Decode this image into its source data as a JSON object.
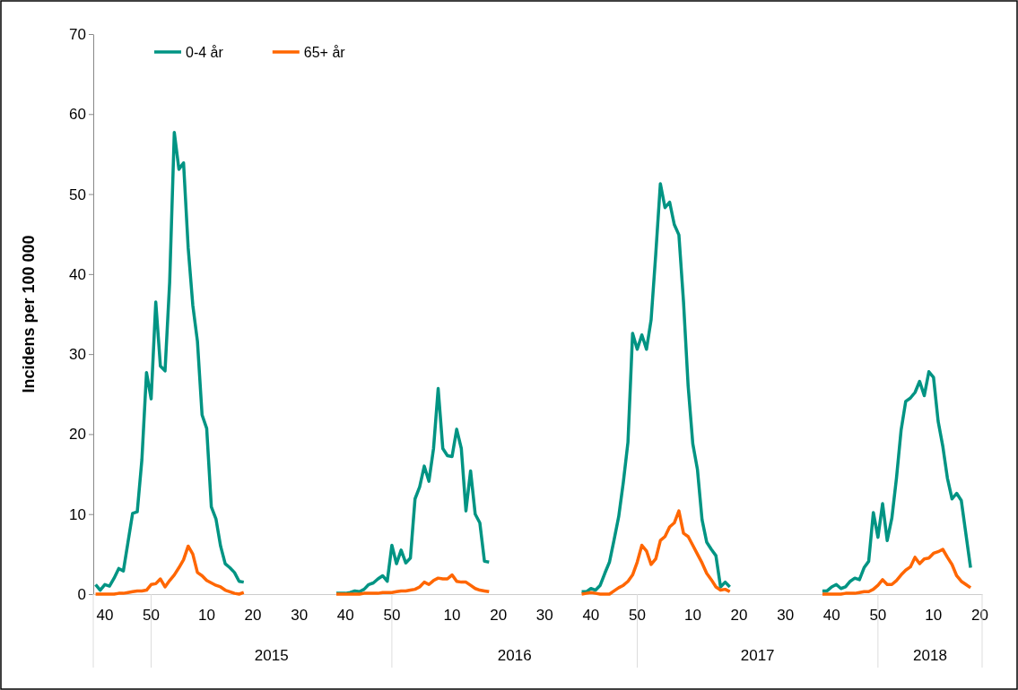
{
  "chart_data": {
    "type": "line",
    "ylabel": "Incidens per 100 000",
    "categories": [
      null,
      null,
      "40",
      null,
      null,
      null,
      null,
      null,
      null,
      null,
      null,
      null,
      "50",
      null,
      null,
      null,
      null,
      null,
      null,
      null,
      null,
      null,
      null,
      null,
      "10",
      null,
      null,
      null,
      null,
      null,
      null,
      null,
      null,
      null,
      "20",
      null,
      null,
      null,
      null,
      null,
      null,
      null,
      null,
      null,
      "30",
      null,
      null,
      null,
      null,
      null,
      null,
      null,
      null,
      null,
      "40",
      null,
      null,
      null,
      null,
      null,
      null,
      null,
      null,
      null,
      "50",
      null,
      null,
      null,
      null,
      null,
      null,
      null,
      null,
      null,
      null,
      null,
      null,
      "10",
      null,
      null,
      null,
      null,
      null,
      null,
      null,
      null,
      null,
      "20",
      null,
      null,
      null,
      null,
      null,
      null,
      null,
      null,
      null,
      "30",
      null,
      null,
      null,
      null,
      null,
      null,
      null,
      null,
      null,
      "40",
      null,
      null,
      null,
      null,
      null,
      null,
      null,
      null,
      null,
      "50",
      null,
      null,
      null,
      null,
      null,
      null,
      null,
      null,
      null,
      null,
      null,
      "10",
      null,
      null,
      null,
      null,
      null,
      null,
      null,
      null,
      null,
      "20",
      null,
      null,
      null,
      null,
      null,
      null,
      null,
      null,
      null,
      "30",
      null,
      null,
      null,
      null,
      null,
      null,
      null,
      null,
      null,
      "40",
      null,
      null,
      null,
      null,
      null,
      null,
      null,
      null,
      null,
      "50",
      null,
      null,
      null,
      null,
      null,
      null,
      null,
      null,
      null,
      null,
      null,
      "10",
      null,
      null,
      null,
      null,
      null,
      null,
      null,
      null,
      null,
      "20"
    ],
    "series": [
      {
        "name": "0-4 år",
        "color": "#009483",
        "values": [
          1.2,
          0.5,
          1.2,
          1.0,
          2.0,
          3.2,
          2.9,
          6.5,
          10.1,
          10.3,
          16.8,
          27.7,
          24.4,
          36.5,
          28.5,
          27.9,
          39.0,
          57.7,
          53.1,
          53.9,
          43.3,
          36.1,
          31.6,
          22.4,
          20.7,
          10.9,
          9.4,
          6.0,
          3.8,
          3.3,
          2.7,
          1.6,
          1.5,
          null,
          null,
          null,
          null,
          null,
          null,
          null,
          null,
          null,
          null,
          null,
          null,
          null,
          null,
          null,
          null,
          null,
          null,
          null,
          0.1,
          0.1,
          0.1,
          0.2,
          0.4,
          0.3,
          0.6,
          1.2,
          1.4,
          1.9,
          2.3,
          1.6,
          6.1,
          3.8,
          5.5,
          3.9,
          4.5,
          11.9,
          13.4,
          16.0,
          14.1,
          18.2,
          25.7,
          18.2,
          17.3,
          17.2,
          20.6,
          18.2,
          10.4,
          15.4,
          10.0,
          8.9,
          4.1,
          4.0,
          null,
          null,
          null,
          null,
          null,
          null,
          null,
          null,
          null,
          null,
          null,
          null,
          null,
          null,
          null,
          null,
          null,
          null,
          null,
          0.3,
          0.3,
          0.7,
          0.5,
          1.1,
          2.6,
          4.0,
          6.8,
          9.7,
          14.0,
          19.0,
          32.6,
          30.6,
          32.4,
          30.6,
          34.3,
          42.5,
          51.3,
          48.3,
          49.0,
          46.2,
          44.9,
          36.5,
          26.0,
          18.8,
          15.6,
          9.3,
          6.5,
          5.6,
          4.8,
          0.9,
          1.5,
          0.9,
          null,
          null,
          null,
          null,
          null,
          null,
          null,
          null,
          null,
          null,
          null,
          null,
          null,
          null,
          null,
          null,
          null,
          null,
          null,
          0.4,
          0.4,
          0.9,
          1.2,
          0.7,
          0.9,
          1.6,
          2.0,
          1.8,
          3.3,
          4.1,
          10.2,
          7.1,
          11.3,
          6.7,
          9.5,
          14.5,
          20.5,
          24.1,
          24.5,
          25.2,
          26.6,
          24.8,
          27.8,
          27.1,
          21.6,
          18.5,
          14.5,
          11.9,
          12.6,
          11.7,
          7.5,
          3.3,
          null,
          null
        ]
      },
      {
        "name": "65+ år",
        "color": "#ff6600",
        "values": [
          0,
          0,
          0,
          0,
          0,
          0.1,
          0.1,
          0.2,
          0.3,
          0.4,
          0.4,
          0.5,
          1.2,
          1.3,
          1.9,
          0.9,
          1.7,
          2.4,
          3.3,
          4.3,
          6.0,
          5.0,
          2.7,
          2.3,
          1.7,
          1.4,
          1.1,
          0.9,
          0.5,
          0.3,
          0.1,
          0.0,
          0.2,
          null,
          null,
          null,
          null,
          null,
          null,
          null,
          null,
          null,
          null,
          null,
          null,
          null,
          null,
          null,
          null,
          null,
          null,
          null,
          0,
          0,
          0,
          0,
          0,
          0,
          0.1,
          0.1,
          0.1,
          0.1,
          0.2,
          0.2,
          0.2,
          0.3,
          0.4,
          0.4,
          0.5,
          0.6,
          0.9,
          1.5,
          1.2,
          1.7,
          2.0,
          1.9,
          1.9,
          2.4,
          1.6,
          1.5,
          1.5,
          1.1,
          0.7,
          0.5,
          0.4,
          0.3,
          null,
          null,
          null,
          null,
          null,
          null,
          null,
          null,
          null,
          null,
          null,
          null,
          null,
          null,
          null,
          null,
          null,
          null,
          null,
          0,
          0.1,
          0.2,
          0.1,
          0,
          0,
          0,
          0.4,
          0.8,
          1.1,
          1.6,
          2.4,
          4.0,
          6.1,
          5.4,
          3.7,
          4.4,
          6.7,
          7.2,
          8.4,
          8.9,
          10.4,
          7.6,
          7.2,
          6.1,
          5.0,
          3.9,
          2.6,
          1.8,
          0.9,
          0.5,
          0.6,
          0.3,
          null,
          null,
          null,
          null,
          null,
          null,
          null,
          null,
          null,
          null,
          null,
          null,
          null,
          null,
          null,
          null,
          null,
          null,
          null,
          0,
          0,
          0,
          0,
          0,
          0.1,
          0.1,
          0.1,
          0.2,
          0.3,
          0.3,
          0.6,
          1.1,
          1.8,
          1.2,
          1.2,
          1.7,
          2.4,
          3.0,
          3.4,
          4.6,
          3.8,
          4.4,
          4.5,
          5.1,
          5.3,
          5.6,
          4.6,
          3.7,
          2.3,
          1.6,
          1.2,
          0.8,
          null,
          null
        ]
      }
    ],
    "ylim": [
      0,
      70
    ],
    "yticks": [
      0,
      10,
      20,
      30,
      40,
      50,
      60,
      70
    ],
    "legend": "top left",
    "line_style": "solid",
    "marker": "none",
    "annotations": [
      "2015",
      "2016",
      "2017",
      "2018"
    ]
  }
}
